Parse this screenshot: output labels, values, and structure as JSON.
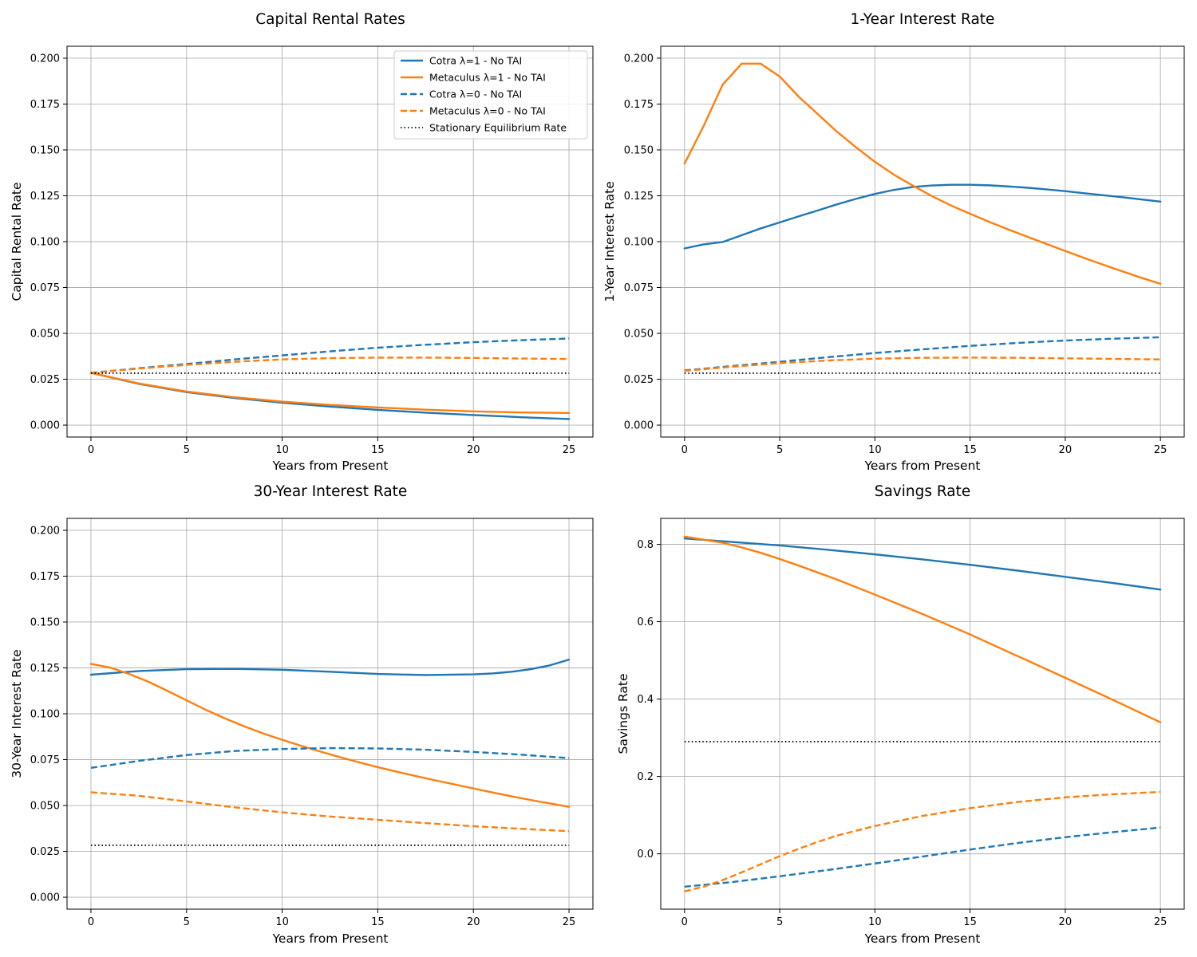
{
  "colors": {
    "cotra": "#1f77b4",
    "metaculus": "#ff7f0e",
    "stationary": "#000000"
  },
  "chart_data": [
    {
      "type": "line",
      "title": "Capital Rental Rates",
      "xlabel": "Years from Present",
      "ylabel": "Capital Rental Rate",
      "xlim": [
        -1.25,
        26.25
      ],
      "ylim": [
        -0.0065,
        0.2065
      ],
      "xticks": [
        0,
        5,
        10,
        15,
        20,
        25
      ],
      "xtick_labels": [
        "0",
        "5",
        "10",
        "15",
        "20",
        "25"
      ],
      "yticks": [
        0,
        0.025,
        0.05,
        0.075,
        0.1,
        0.125,
        0.15,
        0.175,
        0.2
      ],
      "ytick_labels": [
        "0.000",
        "0.025",
        "0.050",
        "0.075",
        "0.100",
        "0.125",
        "0.150",
        "0.175",
        "0.200"
      ],
      "grid": true,
      "legend": {
        "position": "top-right",
        "entries": [
          {
            "label": "Cotra λ=1 - No TAI",
            "color": "cotra",
            "style": "solid"
          },
          {
            "label": "Metaculus λ=1 - No TAI",
            "color": "metaculus",
            "style": "solid"
          },
          {
            "label": "Cotra λ=0 - No TAI",
            "color": "cotra",
            "style": "dashed"
          },
          {
            "label": "Metaculus λ=0 - No TAI",
            "color": "metaculus",
            "style": "dashed"
          },
          {
            "label": "Stationary Equilibrium Rate",
            "color": "stationary",
            "style": "dotted"
          }
        ]
      },
      "series": [
        {
          "name": "Cotra λ=1 - No TAI",
          "color": "cotra",
          "style": "solid",
          "x": [
            0,
            2.5,
            5,
            7.5,
            10,
            12.5,
            15,
            17.5,
            20,
            22.5,
            25
          ],
          "y": [
            0.0285,
            0.0225,
            0.018,
            0.0148,
            0.0122,
            0.0101,
            0.0083,
            0.0068,
            0.0055,
            0.0043,
            0.0033
          ]
        },
        {
          "name": "Metaculus λ=1 - No TAI",
          "color": "metaculus",
          "style": "solid",
          "x": [
            0,
            2.5,
            5,
            7.5,
            10,
            12.5,
            15,
            17.5,
            20,
            22.5,
            25
          ],
          "y": [
            0.0285,
            0.0227,
            0.0183,
            0.0152,
            0.0128,
            0.011,
            0.0096,
            0.0084,
            0.0075,
            0.0069,
            0.0066
          ]
        },
        {
          "name": "Cotra λ=0 - No TAI",
          "color": "cotra",
          "style": "dashed",
          "x": [
            0,
            2.5,
            5,
            7.5,
            10,
            12.5,
            15,
            17.5,
            20,
            22.5,
            25
          ],
          "y": [
            0.0285,
            0.031,
            0.0333,
            0.0358,
            0.038,
            0.0402,
            0.0422,
            0.0438,
            0.0452,
            0.0463,
            0.0472
          ]
        },
        {
          "name": "Metaculus λ=0 - No TAI",
          "color": "metaculus",
          "style": "dashed",
          "x": [
            0,
            2.5,
            5,
            7.5,
            10,
            12.5,
            15,
            17.5,
            20,
            22.5,
            25
          ],
          "y": [
            0.0285,
            0.0308,
            0.0328,
            0.0345,
            0.0358,
            0.0365,
            0.0368,
            0.0368,
            0.0366,
            0.0363,
            0.036
          ]
        },
        {
          "name": "Stationary Equilibrium Rate",
          "color": "stationary",
          "style": "dotted",
          "x": [
            0,
            25
          ],
          "y": [
            0.0283,
            0.0283
          ]
        }
      ]
    },
    {
      "type": "line",
      "title": "1-Year Interest Rate",
      "xlabel": "Years from Present",
      "ylabel": "1-Year Interest Rate",
      "xlim": [
        -1.25,
        26.25
      ],
      "ylim": [
        -0.0065,
        0.2065
      ],
      "xticks": [
        0,
        5,
        10,
        15,
        20,
        25
      ],
      "xtick_labels": [
        "0",
        "5",
        "10",
        "15",
        "20",
        "25"
      ],
      "yticks": [
        0,
        0.025,
        0.05,
        0.075,
        0.1,
        0.125,
        0.15,
        0.175,
        0.2
      ],
      "ytick_labels": [
        "0.000",
        "0.025",
        "0.050",
        "0.075",
        "0.100",
        "0.125",
        "0.150",
        "0.175",
        "0.200"
      ],
      "grid": true,
      "series": [
        {
          "name": "Cotra λ=1 - No TAI",
          "color": "cotra",
          "style": "solid",
          "x": [
            0,
            1,
            2,
            3,
            4,
            5,
            6,
            7,
            8,
            9,
            10,
            11,
            12,
            13,
            14,
            15,
            16,
            17,
            18,
            19,
            20,
            21,
            22,
            23,
            24,
            25
          ],
          "y": [
            0.0963,
            0.0985,
            0.0998,
            0.1035,
            0.1072,
            0.1105,
            0.1138,
            0.117,
            0.1203,
            0.1233,
            0.126,
            0.1282,
            0.1298,
            0.1306,
            0.131,
            0.131,
            0.1307,
            0.1301,
            0.1294,
            0.1285,
            0.1275,
            0.1264,
            0.1253,
            0.1242,
            0.123,
            0.1218
          ]
        },
        {
          "name": "Metaculus λ=1 - No TAI",
          "color": "metaculus",
          "style": "solid",
          "x": [
            0,
            1,
            2,
            3,
            4,
            5,
            6,
            7,
            8,
            9,
            10,
            11,
            12,
            13,
            14,
            15,
            16,
            17,
            18,
            19,
            20,
            21,
            22,
            23,
            24,
            25
          ],
          "y": [
            0.1425,
            0.163,
            0.1855,
            0.197,
            0.197,
            0.19,
            0.179,
            0.1695,
            0.16,
            0.1515,
            0.1435,
            0.1365,
            0.1305,
            0.1248,
            0.1197,
            0.1152,
            0.1108,
            0.1067,
            0.1027,
            0.0988,
            0.0949,
            0.0911,
            0.0874,
            0.0838,
            0.0803,
            0.077
          ]
        },
        {
          "name": "Cotra λ=0 - No TAI",
          "color": "cotra",
          "style": "dashed",
          "x": [
            0,
            2.5,
            5,
            7.5,
            10,
            12.5,
            15,
            17.5,
            20,
            22.5,
            25
          ],
          "y": [
            0.0298,
            0.0322,
            0.0345,
            0.037,
            0.0393,
            0.0413,
            0.0432,
            0.0448,
            0.0461,
            0.0471,
            0.0479
          ]
        },
        {
          "name": "Metaculus λ=0 - No TAI",
          "color": "metaculus",
          "style": "dashed",
          "x": [
            0,
            2.5,
            5,
            7.5,
            10,
            12.5,
            15,
            17.5,
            20,
            22.5,
            25
          ],
          "y": [
            0.0296,
            0.0318,
            0.0338,
            0.0352,
            0.0362,
            0.0367,
            0.0368,
            0.0367,
            0.0364,
            0.0361,
            0.0358
          ]
        },
        {
          "name": "Stationary Equilibrium Rate",
          "color": "stationary",
          "style": "dotted",
          "x": [
            0,
            25
          ],
          "y": [
            0.0283,
            0.0283
          ]
        }
      ]
    },
    {
      "type": "line",
      "title": "30-Year Interest Rate",
      "xlabel": "Years from Present",
      "ylabel": "30-Year Interest Rate",
      "xlim": [
        -1.25,
        26.25
      ],
      "ylim": [
        -0.0065,
        0.2065
      ],
      "xticks": [
        0,
        5,
        10,
        15,
        20,
        25
      ],
      "xtick_labels": [
        "0",
        "5",
        "10",
        "15",
        "20",
        "25"
      ],
      "yticks": [
        0,
        0.025,
        0.05,
        0.075,
        0.1,
        0.125,
        0.15,
        0.175,
        0.2
      ],
      "ytick_labels": [
        "0.000",
        "0.025",
        "0.050",
        "0.075",
        "0.100",
        "0.125",
        "0.150",
        "0.175",
        "0.200"
      ],
      "grid": true,
      "series": [
        {
          "name": "Cotra λ=1 - No TAI",
          "color": "cotra",
          "style": "solid",
          "x": [
            0,
            2.5,
            5,
            7.5,
            10,
            12.5,
            15,
            17.5,
            20,
            21,
            22,
            23,
            24,
            25
          ],
          "y": [
            0.1213,
            0.1233,
            0.1243,
            0.1245,
            0.124,
            0.1229,
            0.1217,
            0.1211,
            0.1215,
            0.122,
            0.1229,
            0.1243,
            0.1264,
            0.1295
          ]
        },
        {
          "name": "Metaculus λ=1 - No TAI",
          "color": "metaculus",
          "style": "solid",
          "x": [
            0,
            1,
            2,
            3,
            4,
            5,
            6,
            7,
            8,
            9,
            10,
            11,
            12,
            13,
            14,
            15,
            16,
            17,
            18,
            19,
            20,
            21,
            22,
            23,
            24,
            25
          ],
          "y": [
            0.1272,
            0.1252,
            0.1217,
            0.1175,
            0.1125,
            0.1073,
            0.1022,
            0.0975,
            0.0932,
            0.0893,
            0.0858,
            0.0825,
            0.0794,
            0.0764,
            0.0736,
            0.0709,
            0.0684,
            0.066,
            0.0637,
            0.0615,
            0.0593,
            0.0571,
            0.055,
            0.053,
            0.0511,
            0.0493
          ]
        },
        {
          "name": "Cotra λ=0 - No TAI",
          "color": "cotra",
          "style": "dashed",
          "x": [
            0,
            2.5,
            5,
            7.5,
            10,
            12.5,
            15,
            17.5,
            20,
            22.5,
            25
          ],
          "y": [
            0.0705,
            0.0743,
            0.0775,
            0.0797,
            0.0808,
            0.0813,
            0.0811,
            0.0804,
            0.0792,
            0.0777,
            0.0758
          ]
        },
        {
          "name": "Metaculus λ=0 - No TAI",
          "color": "metaculus",
          "style": "dashed",
          "x": [
            0,
            2.5,
            5,
            7.5,
            10,
            12.5,
            15,
            17.5,
            20,
            22.5,
            25
          ],
          "y": [
            0.0572,
            0.0553,
            0.0522,
            0.049,
            0.0463,
            0.044,
            0.0422,
            0.0404,
            0.0387,
            0.0373,
            0.036
          ]
        },
        {
          "name": "Stationary Equilibrium Rate",
          "color": "stationary",
          "style": "dotted",
          "x": [
            0,
            25
          ],
          "y": [
            0.0283,
            0.0283
          ]
        }
      ]
    },
    {
      "type": "line",
      "title": "Savings Rate",
      "xlabel": "Years from Present",
      "ylabel": "Savings Rate",
      "xlim": [
        -1.25,
        26.25
      ],
      "ylim": [
        -0.143,
        0.867
      ],
      "xticks": [
        0,
        5,
        10,
        15,
        20,
        25
      ],
      "xtick_labels": [
        "0",
        "5",
        "10",
        "15",
        "20",
        "25"
      ],
      "yticks": [
        0,
        0.2,
        0.4,
        0.6,
        0.8
      ],
      "ytick_labels": [
        "0.0",
        "0.2",
        "0.4",
        "0.6",
        "0.8"
      ],
      "grid": true,
      "series": [
        {
          "name": "Cotra λ=1 - No TAI",
          "color": "cotra",
          "style": "solid",
          "x": [
            0,
            2.5,
            5,
            7.5,
            10,
            12.5,
            15,
            17.5,
            20,
            22.5,
            25
          ],
          "y": [
            0.815,
            0.806,
            0.797,
            0.786,
            0.774,
            0.761,
            0.747,
            0.732,
            0.716,
            0.7,
            0.683
          ]
        },
        {
          "name": "Metaculus λ=1 - No TAI",
          "color": "metaculus",
          "style": "solid",
          "x": [
            0,
            1,
            2,
            3,
            4,
            5,
            6,
            8,
            10,
            12.5,
            15,
            17.5,
            20,
            22.5,
            25
          ],
          "y": [
            0.82,
            0.812,
            0.804,
            0.792,
            0.778,
            0.762,
            0.745,
            0.709,
            0.67,
            0.62,
            0.567,
            0.511,
            0.455,
            0.398,
            0.34
          ]
        },
        {
          "name": "Cotra λ=0 - No TAI",
          "color": "cotra",
          "style": "dashed",
          "x": [
            0,
            2.5,
            5,
            7.5,
            10,
            12.5,
            15,
            17.5,
            20,
            22.5,
            25
          ],
          "y": [
            -0.085,
            -0.073,
            -0.058,
            -0.042,
            -0.025,
            -0.007,
            0.011,
            0.028,
            0.043,
            0.056,
            0.068
          ]
        },
        {
          "name": "Metaculus λ=0 - No TAI",
          "color": "metaculus",
          "style": "dashed",
          "x": [
            0,
            1,
            2,
            3,
            4,
            5,
            6,
            7,
            8,
            10,
            12.5,
            15,
            17.5,
            20,
            22.5,
            25
          ],
          "y": [
            -0.097,
            -0.085,
            -0.068,
            -0.048,
            -0.027,
            -0.006,
            0.013,
            0.031,
            0.047,
            0.072,
            0.098,
            0.118,
            0.134,
            0.146,
            0.154,
            0.16
          ]
        },
        {
          "name": "Stationary Equilibrium Rate",
          "color": "stationary",
          "style": "dotted",
          "x": [
            0,
            25
          ],
          "y": [
            0.29,
            0.29
          ]
        }
      ]
    }
  ]
}
